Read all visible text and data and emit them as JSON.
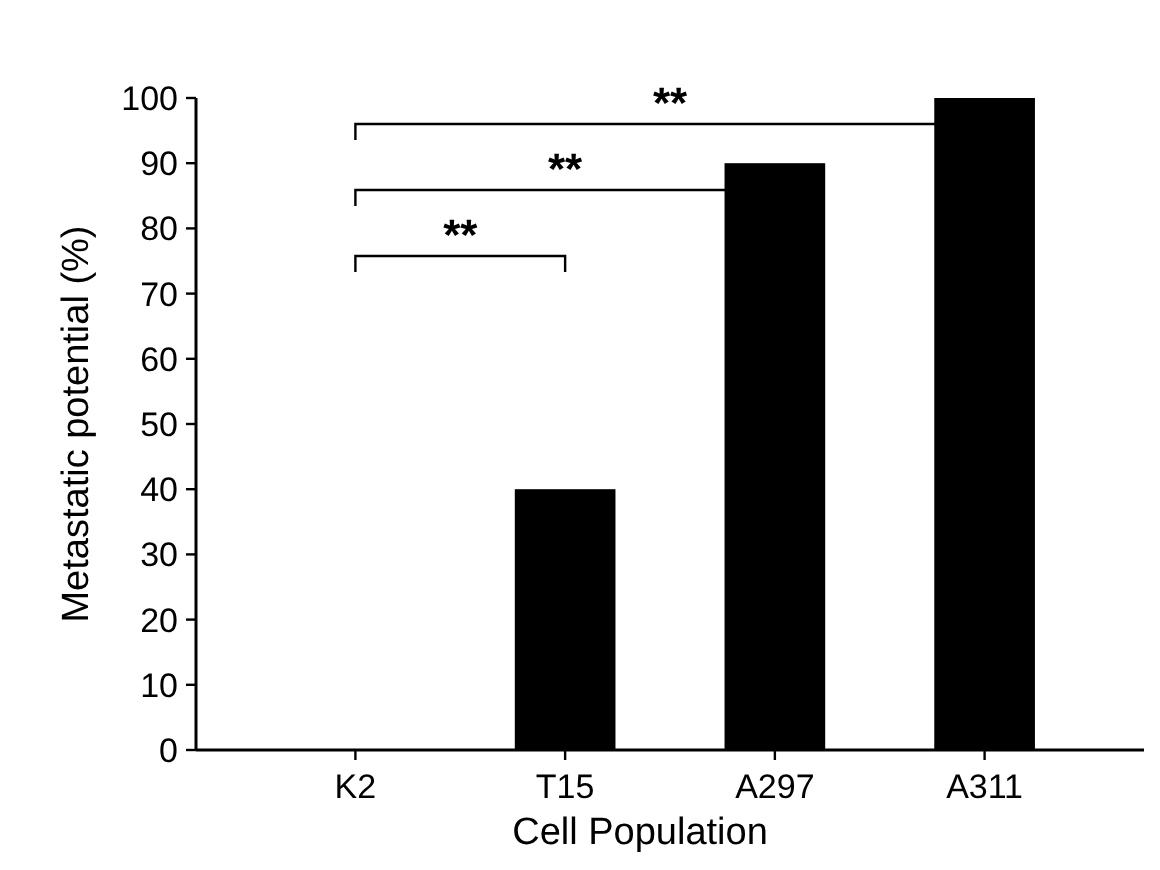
{
  "chart_data": {
    "type": "bar",
    "xlabel": "Cell Population",
    "ylabel": "Metastatic potential (%)",
    "categories": [
      "K2",
      "T15",
      "A297",
      "A311"
    ],
    "values": [
      0,
      40,
      90,
      100
    ],
    "color": "#000000",
    "ylim": [
      0,
      100
    ],
    "yticks": [
      0,
      10,
      20,
      30,
      40,
      50,
      60,
      70,
      80,
      90,
      100
    ],
    "grid": false,
    "annotations": [
      "**",
      "**",
      "**"
    ]
  }
}
